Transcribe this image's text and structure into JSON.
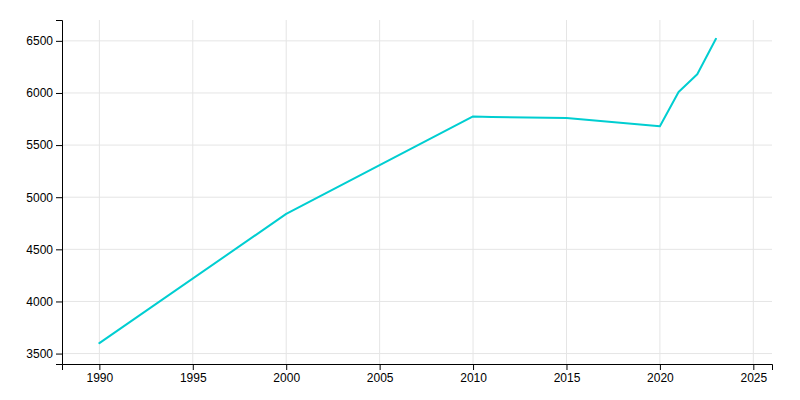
{
  "chart_data": {
    "type": "line",
    "x": [
      1990,
      2000,
      2010,
      2011,
      2015,
      2020,
      2021,
      2022,
      2023
    ],
    "values": [
      3600,
      4840,
      5775,
      5770,
      5760,
      5680,
      6010,
      6180,
      6520
    ],
    "color": "#00CED1",
    "xlim": [
      1988,
      2026
    ],
    "ylim": [
      3400,
      6700
    ],
    "xticks": [
      1990,
      1995,
      2000,
      2005,
      2010,
      2015,
      2020,
      2025
    ],
    "yticks": [
      3500,
      4000,
      4500,
      5000,
      5500,
      6000,
      6500
    ],
    "grid": true
  }
}
